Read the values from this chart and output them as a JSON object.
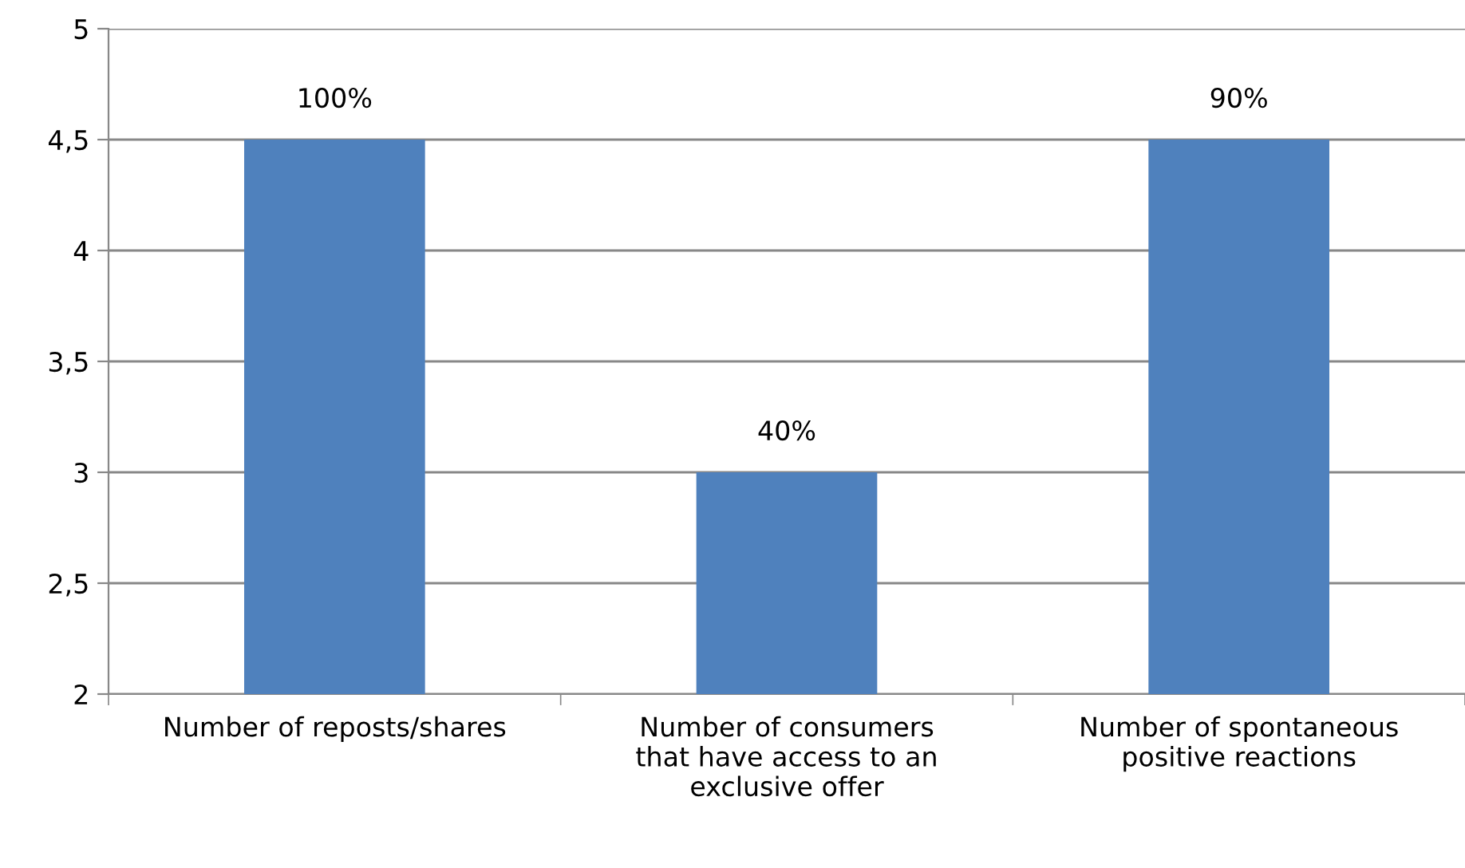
{
  "chart_data": {
    "type": "bar",
    "categories": [
      "Number of reposts/shares",
      "Number of consumers\nthat have access to an\nexclusive offer",
      "Number of spontaneous\npositive reactions"
    ],
    "values": [
      4.5,
      3,
      4.5
    ],
    "annotations": [
      {
        "text": "100%",
        "x": "Number of reposts/shares",
        "y": 4.5
      },
      {
        "text": "40%",
        "x": "Number of consumers\nthat have access to an\nexclusive offer",
        "y": 3
      },
      {
        "text": "90%",
        "x": "Number of spontaneous\npositive reactions",
        "y": 4.5
      }
    ],
    "color": "#4f81bd",
    "ylim": [
      2,
      5
    ],
    "yticks": [
      2,
      {
        "value": 2.5,
        "label": "2,5"
      },
      3,
      {
        "value": 3.5,
        "label": "3,5"
      },
      4,
      {
        "value": 4.5,
        "label": "4,5"
      },
      5
    ],
    "grid": "y",
    "legend": false
  }
}
